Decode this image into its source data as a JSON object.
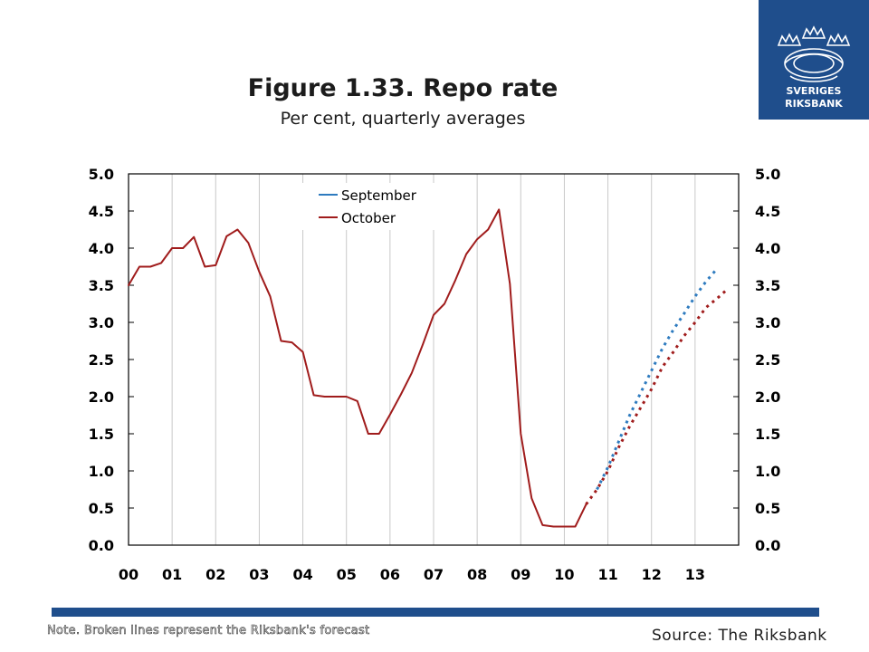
{
  "title": "Figure 1.33. Repo rate",
  "subtitle": "Per cent, quarterly averages",
  "logo": {
    "line1": "SVERIGES",
    "line2": "RIKSBANK",
    "color": "#1f4e8c"
  },
  "note": "Note. Broken lines represent the Riksbank's forecast",
  "source": "Source: The Riksbank",
  "colors": {
    "september": "#2e7bbf",
    "october": "#a01c1c",
    "bar": "#1f4e8c"
  },
  "chart_data": {
    "type": "line",
    "title": "Figure 1.33. Repo rate",
    "subtitle": "Per cent, quarterly averages",
    "x_tick_labels": [
      "00",
      "01",
      "02",
      "03",
      "04",
      "05",
      "06",
      "07",
      "08",
      "09",
      "10",
      "11",
      "12",
      "13"
    ],
    "ylim": [
      0,
      5
    ],
    "y_ticks": [
      "0.0",
      "0.5",
      "1.0",
      "1.5",
      "2.0",
      "2.5",
      "3.0",
      "3.5",
      "4.0",
      "4.5",
      "5.0"
    ],
    "grid": "vertical",
    "legend": "top-center",
    "series": [
      {
        "name": "September",
        "color": "#2e7bbf",
        "style": "dotted",
        "points": [
          [
            2010.75,
            0.75
          ],
          [
            2011.0,
            1.05
          ],
          [
            2011.25,
            1.4
          ],
          [
            2011.5,
            1.75
          ],
          [
            2011.75,
            2.05
          ],
          [
            2012.0,
            2.35
          ],
          [
            2012.25,
            2.65
          ],
          [
            2012.5,
            2.9
          ],
          [
            2012.75,
            3.12
          ],
          [
            2013.0,
            3.35
          ],
          [
            2013.25,
            3.55
          ],
          [
            2013.5,
            3.72
          ]
        ]
      },
      {
        "name": "October",
        "color": "#a01c1c",
        "style": "solid",
        "points": [
          [
            2000.0,
            3.5
          ],
          [
            2000.25,
            3.75
          ],
          [
            2000.5,
            3.75
          ],
          [
            2000.75,
            3.8
          ],
          [
            2001.0,
            4.0
          ],
          [
            2001.25,
            4.0
          ],
          [
            2001.5,
            4.15
          ],
          [
            2001.75,
            3.75
          ],
          [
            2002.0,
            3.77
          ],
          [
            2002.25,
            4.16
          ],
          [
            2002.5,
            4.25
          ],
          [
            2002.75,
            4.07
          ],
          [
            2003.0,
            3.68
          ],
          [
            2003.25,
            3.35
          ],
          [
            2003.5,
            2.75
          ],
          [
            2003.75,
            2.73
          ],
          [
            2004.0,
            2.6
          ],
          [
            2004.25,
            2.02
          ],
          [
            2004.5,
            2.0
          ],
          [
            2004.75,
            2.0
          ],
          [
            2005.0,
            2.0
          ],
          [
            2005.25,
            1.94
          ],
          [
            2005.5,
            1.5
          ],
          [
            2005.75,
            1.5
          ],
          [
            2006.0,
            1.76
          ],
          [
            2006.25,
            2.03
          ],
          [
            2006.5,
            2.32
          ],
          [
            2006.75,
            2.7
          ],
          [
            2007.0,
            3.1
          ],
          [
            2007.25,
            3.25
          ],
          [
            2007.5,
            3.57
          ],
          [
            2007.75,
            3.92
          ],
          [
            2008.0,
            4.12
          ],
          [
            2008.25,
            4.25
          ],
          [
            2008.5,
            4.52
          ],
          [
            2008.75,
            3.52
          ],
          [
            2009.0,
            1.5
          ],
          [
            2009.25,
            0.63
          ],
          [
            2009.5,
            0.27
          ],
          [
            2009.75,
            0.25
          ],
          [
            2010.0,
            0.25
          ],
          [
            2010.25,
            0.25
          ],
          [
            2010.5,
            0.55
          ]
        ]
      },
      {
        "name": "October",
        "color": "#a01c1c",
        "style": "dotted",
        "points": [
          [
            2010.5,
            0.55
          ],
          [
            2010.75,
            0.75
          ],
          [
            2011.0,
            1.0
          ],
          [
            2011.25,
            1.32
          ],
          [
            2011.5,
            1.6
          ],
          [
            2011.75,
            1.85
          ],
          [
            2012.0,
            2.1
          ],
          [
            2012.25,
            2.4
          ],
          [
            2012.5,
            2.6
          ],
          [
            2012.75,
            2.82
          ],
          [
            2013.0,
            3.0
          ],
          [
            2013.25,
            3.2
          ],
          [
            2013.5,
            3.32
          ],
          [
            2013.75,
            3.45
          ]
        ]
      }
    ]
  }
}
